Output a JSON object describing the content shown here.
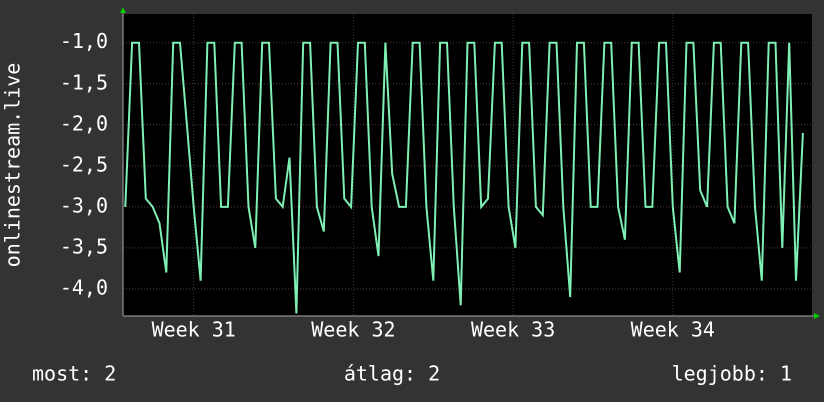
{
  "chart_data": {
    "type": "line",
    "y_label": "onlinestream.live",
    "x": [
      0,
      0.3,
      0.6,
      0.9,
      1.2,
      1.5,
      1.8,
      2.1,
      2.4,
      2.7,
      3,
      3.3,
      3.6,
      3.9,
      4.2,
      4.5,
      4.8,
      5.1,
      5.4,
      5.7,
      6,
      6.3,
      6.6,
      6.9,
      7.2,
      7.5,
      7.8,
      8.1,
      8.4,
      8.7,
      9,
      9.3,
      9.6,
      9.9,
      10.2,
      10.5,
      10.8,
      11.1,
      11.4,
      11.7,
      12,
      12.3,
      12.6,
      12.9,
      13.2,
      13.5,
      13.8,
      14.1,
      14.4,
      14.7,
      15,
      15.3,
      15.6,
      15.9,
      16.2,
      16.5,
      16.8,
      17.1,
      17.4,
      17.7,
      18,
      18.3,
      18.6,
      18.9,
      19.2,
      19.5,
      19.8,
      20.1,
      20.4,
      20.7,
      21,
      21.3,
      21.6,
      21.9,
      22.2,
      22.5,
      22.8,
      23.1,
      23.4,
      23.7,
      24,
      24.3,
      24.6,
      24.9,
      25.2,
      25.5,
      25.8,
      26.1,
      26.4,
      26.7,
      27,
      27.3,
      27.6,
      27.9,
      28.2,
      28.5,
      28.8,
      29.1,
      29.4,
      29.7
    ],
    "values": [
      -3.0,
      -1.0,
      -1.0,
      -2.9,
      -3.0,
      -3.2,
      -3.8,
      -1.0,
      -1.0,
      -2.0,
      -3.0,
      -3.9,
      -1.0,
      -1.0,
      -3.0,
      -3.0,
      -1.0,
      -1.0,
      -3.0,
      -3.5,
      -1.0,
      -1.0,
      -2.9,
      -3.0,
      -2.4,
      -4.3,
      -1.0,
      -1.0,
      -3.0,
      -3.3,
      -1.0,
      -1.0,
      -2.9,
      -3.0,
      -1.0,
      -1.0,
      -3.0,
      -3.6,
      -1.0,
      -2.6,
      -3.0,
      -3.0,
      -1.0,
      -1.0,
      -3.0,
      -3.9,
      -1.0,
      -1.0,
      -3.0,
      -4.2,
      -1.0,
      -1.0,
      -3.0,
      -2.9,
      -1.0,
      -1.0,
      -3.0,
      -3.5,
      -1.0,
      -1.0,
      -3.0,
      -3.1,
      -1.0,
      -1.0,
      -3.0,
      -4.1,
      -1.0,
      -1.0,
      -3.0,
      -3.0,
      -1.0,
      -1.0,
      -3.0,
      -3.4,
      -1.0,
      -1.0,
      -3.0,
      -3.0,
      -1.0,
      -1.0,
      -3.0,
      -3.8,
      -1.0,
      -1.0,
      -2.8,
      -3.0,
      -1.0,
      -1.0,
      -3.0,
      -3.2,
      -1.0,
      -1.0,
      -3.0,
      -3.9,
      -1.0,
      -1.0,
      -3.5,
      -1.0,
      -3.9,
      -2.1
    ],
    "color": "#7ff0b4",
    "xlim": [
      -0.1,
      30.1
    ],
    "xticks": [
      {
        "value": 3,
        "label": "Week 31"
      },
      {
        "value": 10,
        "label": "Week 32"
      },
      {
        "value": 17,
        "label": "Week 33"
      },
      {
        "value": 24,
        "label": "Week 34"
      }
    ],
    "ylim": [
      -4.33,
      -0.65
    ],
    "yticks": [
      {
        "value": -4,
        "label": "-4,0"
      },
      {
        "value": -3.5,
        "label": "-3,5"
      },
      {
        "value": -3,
        "label": "-3,0"
      },
      {
        "value": -2.5,
        "label": "-2,5"
      },
      {
        "value": -2,
        "label": "-2,0"
      },
      {
        "value": -1.5,
        "label": "-1,5"
      },
      {
        "value": -1,
        "label": "-1,0"
      }
    ],
    "grid": true,
    "footer": {
      "current": "most: 2",
      "average": "átlag: 2",
      "best": "legjobb: 1"
    }
  }
}
